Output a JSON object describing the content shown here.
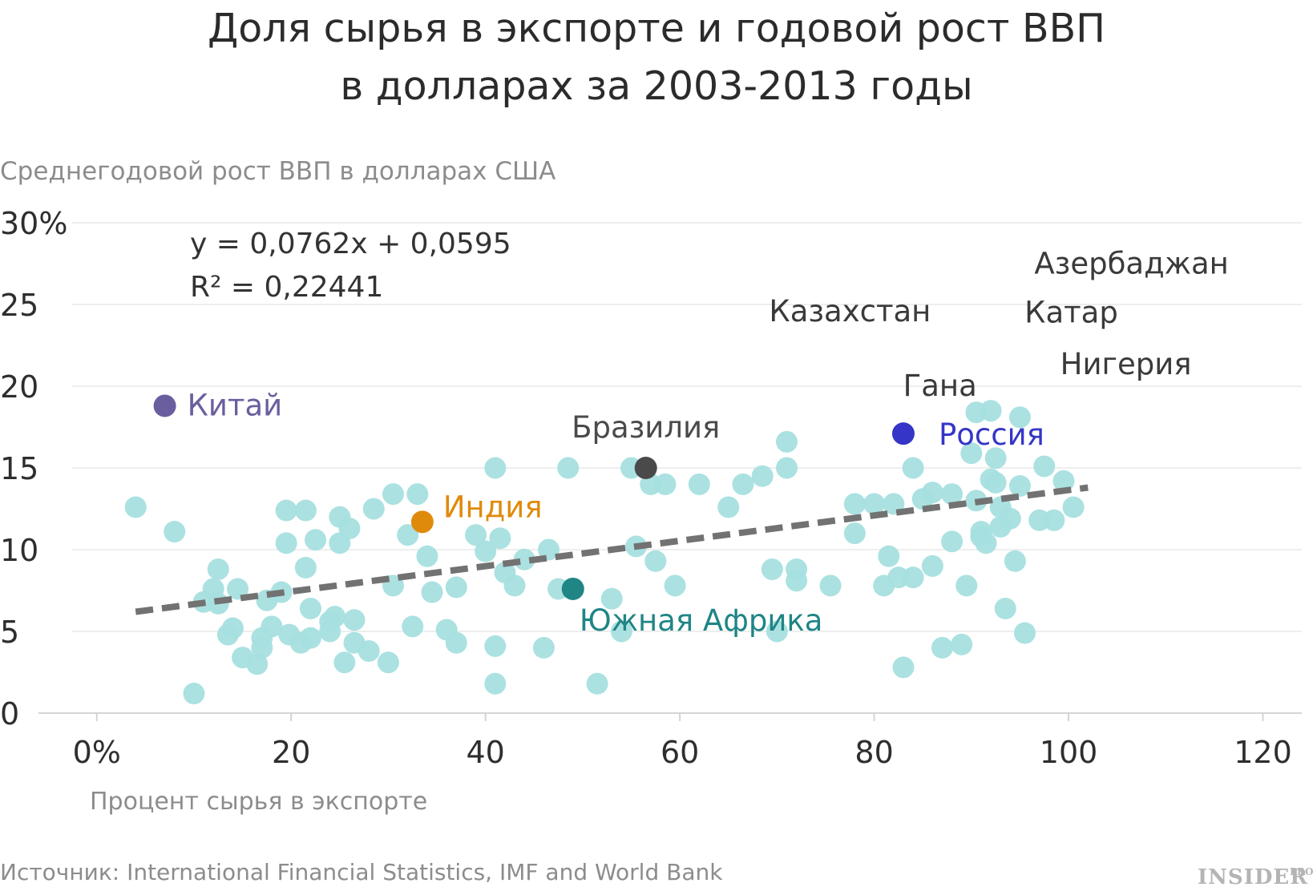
{
  "chart_data": {
    "type": "scatter",
    "title": [
      "Доля сырья в экспорте и годовой рост ВВП",
      "в долларах за 2003-2013 годы"
    ],
    "ylabel": "Среднегодовой рост ВВП в долларах США",
    "xlabel": "Процент сырья в экспорте",
    "xlim": [
      -6,
      124
    ],
    "ylim": [
      0,
      30
    ],
    "x_ticks": [
      0,
      20,
      40,
      60,
      80,
      100,
      120
    ],
    "x_tick_labels": [
      "0%",
      "20",
      "40",
      "60",
      "80",
      "100",
      "120"
    ],
    "y_ticks": [
      0,
      5,
      10,
      15,
      20,
      25,
      30
    ],
    "y_tick_labels": [
      "0",
      "5",
      "10",
      "15",
      "20",
      "25",
      "30%"
    ],
    "equation": "y = 0,0762x + 0,0595",
    "r_squared": "R² = 0,22441",
    "trendline": {
      "x": [
        4,
        102
      ],
      "y": [
        6.2,
        13.8
      ]
    },
    "source": "Источник: International Financial Statistics, IMF and World Bank",
    "brand": {
      "main": "INSIDER",
      "suffix": "PRO"
    },
    "colors": {
      "points": "#a6dfdf",
      "trend": "#727272",
      "china": "#6b5e9e",
      "india": "#e08a0c",
      "brazil": "#5f5f5f",
      "south_africa": "#1f8585",
      "russia": "#3535c8",
      "label_dark": "#3a3a3a"
    },
    "highlighted": [
      {
        "name": "Китай",
        "x": 7,
        "y": 18.8,
        "color": "#6b5e9e",
        "dot": true
      },
      {
        "name": "Индия",
        "x": 33.5,
        "y": 11.7,
        "color": "#e08a0c",
        "dot": true
      },
      {
        "name": "Бразилия",
        "x": 56.5,
        "y": 15,
        "color": "#4a4a4a",
        "dot": true
      },
      {
        "name": "Южная Африка",
        "x": 49,
        "y": 7.6,
        "color": "#1f8585",
        "dot": true
      },
      {
        "name": "Россия",
        "x": 83,
        "y": 17.1,
        "color": "#3535c8",
        "dot": true
      },
      {
        "name": "Азербаджан",
        "x": 94.5,
        "y": 26,
        "color": "#3a3a3a",
        "dot": false
      },
      {
        "name": "Казахстан",
        "x": 86.5,
        "y": 22.3,
        "color": "#3a3a3a",
        "dot": false
      },
      {
        "name": "Катар",
        "x": 93,
        "y": 24,
        "color": "#3a3a3a",
        "dot": false
      },
      {
        "name": "Нигерия",
        "x": 97,
        "y": 22.7,
        "color": "#3a3a3a",
        "dot": false
      },
      {
        "name": "Гана",
        "x": 80.5,
        "y": 20,
        "color": "#3a3a3a",
        "dot": false
      }
    ],
    "points": [
      [
        4,
        12.6
      ],
      [
        8,
        11.1
      ],
      [
        10,
        1.2
      ],
      [
        11,
        6.8
      ],
      [
        12,
        7.6
      ],
      [
        12.5,
        8.8
      ],
      [
        12.5,
        6.7
      ],
      [
        13.5,
        4.8
      ],
      [
        14,
        5.2
      ],
      [
        14.5,
        7.6
      ],
      [
        15,
        3.4
      ],
      [
        16.5,
        3.0
      ],
      [
        17,
        4.0
      ],
      [
        17,
        4.6
      ],
      [
        17.5,
        6.9
      ],
      [
        18,
        5.3
      ],
      [
        19,
        7.4
      ],
      [
        19.5,
        12.4
      ],
      [
        19.5,
        10.4
      ],
      [
        19.8,
        4.8
      ],
      [
        21,
        4.3
      ],
      [
        21.5,
        12.4
      ],
      [
        21.5,
        8.9
      ],
      [
        22,
        6.4
      ],
      [
        22,
        4.6
      ],
      [
        22.5,
        10.6
      ],
      [
        24,
        5.6
      ],
      [
        24,
        5.0
      ],
      [
        24.5,
        5.9
      ],
      [
        25,
        12.0
      ],
      [
        25,
        10.4
      ],
      [
        25.5,
        3.1
      ],
      [
        26,
        11.3
      ],
      [
        26.5,
        5.7
      ],
      [
        26.5,
        4.3
      ],
      [
        28,
        3.8
      ],
      [
        28.5,
        12.5
      ],
      [
        30,
        3.1
      ],
      [
        30.5,
        13.4
      ],
      [
        30.5,
        7.8
      ],
      [
        32,
        10.9
      ],
      [
        32.5,
        5.3
      ],
      [
        33,
        13.4
      ],
      [
        34,
        9.6
      ],
      [
        34.5,
        7.4
      ],
      [
        36,
        5.1
      ],
      [
        37,
        7.7
      ],
      [
        37,
        4.3
      ],
      [
        39,
        10.9
      ],
      [
        40,
        9.9
      ],
      [
        41,
        15
      ],
      [
        41,
        4.1
      ],
      [
        41,
        1.8
      ],
      [
        41.5,
        10.7
      ],
      [
        42,
        8.6
      ],
      [
        43,
        7.8
      ],
      [
        44,
        9.4
      ],
      [
        46,
        4.0
      ],
      [
        46.5,
        10.0
      ],
      [
        47.5,
        7.6
      ],
      [
        48.5,
        15
      ],
      [
        51.5,
        1.8
      ],
      [
        53,
        7.0
      ],
      [
        54,
        5.0
      ],
      [
        55,
        15
      ],
      [
        55.5,
        10.2
      ],
      [
        57,
        14.0
      ],
      [
        57.5,
        9.3
      ],
      [
        58.5,
        14.0
      ],
      [
        59.5,
        7.8
      ],
      [
        62,
        14.0
      ],
      [
        65,
        12.6
      ],
      [
        66.5,
        14.0
      ],
      [
        68.5,
        14.5
      ],
      [
        69.5,
        8.8
      ],
      [
        70,
        5.0
      ],
      [
        71,
        16.6
      ],
      [
        71,
        15
      ],
      [
        72,
        8.8
      ],
      [
        72,
        8.1
      ],
      [
        75.5,
        7.8
      ],
      [
        78,
        12.8
      ],
      [
        78,
        11.0
      ],
      [
        80,
        12.8
      ],
      [
        81,
        7.8
      ],
      [
        81.5,
        9.6
      ],
      [
        82,
        12.8
      ],
      [
        82.5,
        8.3
      ],
      [
        83,
        2.8
      ],
      [
        84,
        8.3
      ],
      [
        84,
        15
      ],
      [
        85,
        13.1
      ],
      [
        86,
        13.5
      ],
      [
        86,
        9.0
      ],
      [
        87,
        4.0
      ],
      [
        88,
        13.4
      ],
      [
        88,
        10.5
      ],
      [
        89,
        4.2
      ],
      [
        89.5,
        7.8
      ],
      [
        90,
        15.9
      ],
      [
        90.5,
        18.4
      ],
      [
        90.5,
        13.0
      ],
      [
        91,
        11.1
      ],
      [
        91,
        10.8
      ],
      [
        91.5,
        10.4
      ],
      [
        92,
        14.3
      ],
      [
        92,
        18.5
      ],
      [
        92.5,
        15.6
      ],
      [
        92.5,
        14.1
      ],
      [
        93,
        11.4
      ],
      [
        93,
        12.6
      ],
      [
        93.5,
        6.4
      ],
      [
        94,
        11.9
      ],
      [
        94.5,
        9.3
      ],
      [
        95,
        18.1
      ],
      [
        95,
        13.9
      ],
      [
        95.5,
        4.9
      ],
      [
        97,
        11.8
      ],
      [
        97.5,
        15.1
      ],
      [
        98.5,
        11.8
      ],
      [
        99.5,
        14.2
      ],
      [
        100.5,
        12.6
      ]
    ]
  }
}
